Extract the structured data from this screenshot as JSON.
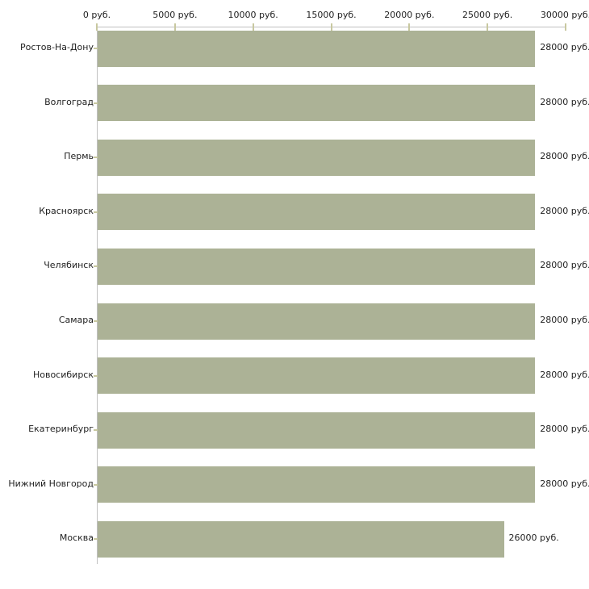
{
  "chart_data": {
    "type": "bar",
    "orientation": "horizontal",
    "title": "",
    "categories": [
      "Ростов-На-Дону",
      "Волгоград",
      "Пермь",
      "Красноярск",
      "Челябинск",
      "Самара",
      "Новосибирск",
      "Екатеринбург",
      "Нижний Новгород",
      "Москва"
    ],
    "values": [
      28000,
      28000,
      28000,
      28000,
      28000,
      28000,
      28000,
      28000,
      28000,
      26000
    ],
    "value_labels": [
      "28000 руб.",
      "28000 руб.",
      "28000 руб.",
      "28000 руб.",
      "28000 руб.",
      "28000 руб.",
      "28000 руб.",
      "28000 руб.",
      "28000 руб.",
      "26000 руб."
    ],
    "xlim": [
      0,
      30000
    ],
    "x_ticks": [
      0,
      5000,
      10000,
      15000,
      20000,
      25000,
      30000
    ],
    "x_tick_labels": [
      "0 руб.",
      "5000 руб.",
      "10000 руб.",
      "15000 руб.",
      "20000 руб.",
      "25000 руб.",
      "30000 руб."
    ],
    "x_axis_position": "top",
    "grid": false,
    "legend": false,
    "unit_suffix": " руб.",
    "colors": {
      "bar": "#ACB296",
      "axis": "#C0C0C0",
      "tick": "#C8C8A0",
      "text": "#1F1F1F",
      "background": "#FFFFFF"
    }
  }
}
